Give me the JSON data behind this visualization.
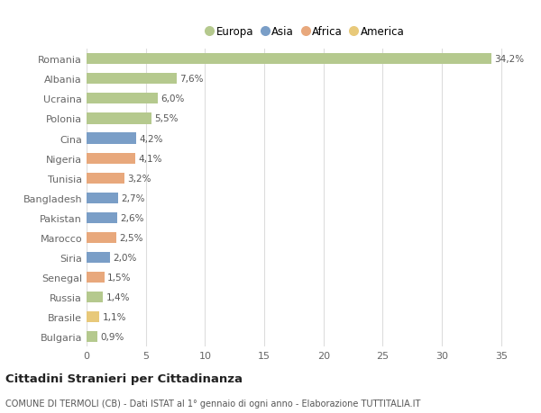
{
  "countries": [
    "Romania",
    "Albania",
    "Ucraina",
    "Polonia",
    "Cina",
    "Nigeria",
    "Tunisia",
    "Bangladesh",
    "Pakistan",
    "Marocco",
    "Siria",
    "Senegal",
    "Russia",
    "Brasile",
    "Bulgaria"
  ],
  "values": [
    34.2,
    7.6,
    6.0,
    5.5,
    4.2,
    4.1,
    3.2,
    2.7,
    2.6,
    2.5,
    2.0,
    1.5,
    1.4,
    1.1,
    0.9
  ],
  "labels": [
    "34,2%",
    "7,6%",
    "6,0%",
    "5,5%",
    "4,2%",
    "4,1%",
    "3,2%",
    "2,7%",
    "2,6%",
    "2,5%",
    "2,0%",
    "1,5%",
    "1,4%",
    "1,1%",
    "0,9%"
  ],
  "colors": [
    "#b5c98e",
    "#b5c98e",
    "#b5c98e",
    "#b5c98e",
    "#7a9ec7",
    "#e8a87c",
    "#e8a87c",
    "#7a9ec7",
    "#7a9ec7",
    "#e8a87c",
    "#7a9ec7",
    "#e8a87c",
    "#b5c98e",
    "#e8c97a",
    "#b5c98e"
  ],
  "legend_labels": [
    "Europa",
    "Asia",
    "Africa",
    "America"
  ],
  "legend_colors": [
    "#b5c98e",
    "#7a9ec7",
    "#e8a87c",
    "#e8c97a"
  ],
  "title": "Cittadini Stranieri per Cittadinanza",
  "subtitle": "COMUNE DI TERMOLI (CB) - Dati ISTAT al 1° gennaio di ogni anno - Elaborazione TUTTITALIA.IT",
  "xlim": [
    0,
    37
  ],
  "xticks": [
    0,
    5,
    10,
    15,
    20,
    25,
    30,
    35
  ],
  "bg_color": "#ffffff",
  "plot_bg_color": "#ffffff",
  "grid_color": "#dddddd"
}
